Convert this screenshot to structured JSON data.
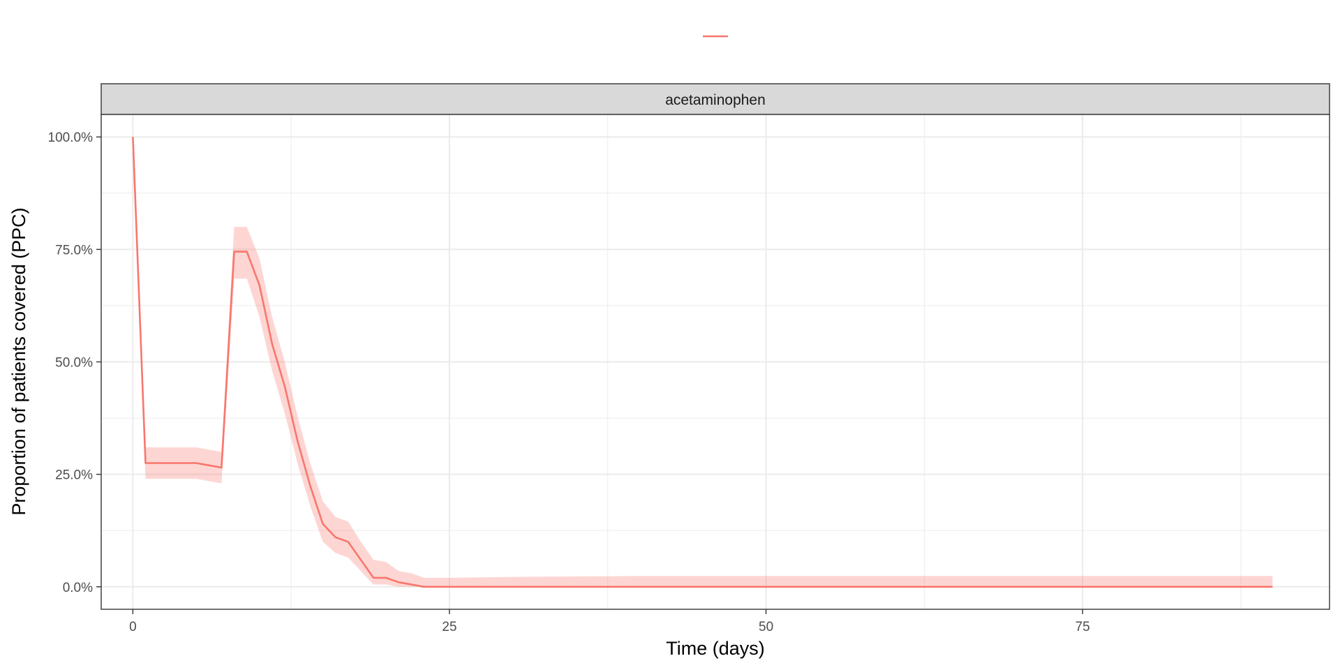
{
  "chart_data": {
    "type": "line",
    "facet": "acetaminophen",
    "xlabel": "Time (days)",
    "ylabel": "Proportion of patients covered (PPC)",
    "xlim": [
      -2.5,
      94.5
    ],
    "ylim": [
      -0.05,
      1.05
    ],
    "x_ticks": [
      0,
      25,
      50,
      75
    ],
    "x_tick_labels": [
      "0",
      "25",
      "50",
      "75"
    ],
    "y_ticks": [
      0,
      0.25,
      0.5,
      0.75,
      1.0
    ],
    "y_tick_labels": [
      "0.0%",
      "25.0%",
      "50.0%",
      "75.0%",
      "100.0%"
    ],
    "grid": true,
    "legend": {
      "position": "top",
      "entries": [
        ""
      ]
    },
    "series": [
      {
        "color": "#F8766D",
        "ribbon_color": "#F8766D",
        "x": [
          0,
          1,
          2,
          3,
          4,
          5,
          6,
          7,
          8,
          9,
          10,
          11,
          12,
          13,
          14,
          15,
          16,
          17,
          18,
          19,
          20,
          21,
          22,
          23,
          24,
          25,
          30,
          40,
          50,
          60,
          70,
          80,
          90
        ],
        "y": [
          1.0,
          0.275,
          0.275,
          0.275,
          0.275,
          0.275,
          0.27,
          0.265,
          0.745,
          0.745,
          0.67,
          0.54,
          0.445,
          0.325,
          0.225,
          0.14,
          0.11,
          0.1,
          0.06,
          0.02,
          0.02,
          0.01,
          0.005,
          0.0,
          0.0,
          0.0,
          0.0,
          0.0,
          0.0,
          0.0,
          0.0,
          0.0,
          0.0
        ],
        "lower": [
          1.0,
          0.24,
          0.24,
          0.24,
          0.24,
          0.24,
          0.235,
          0.23,
          0.685,
          0.685,
          0.6,
          0.48,
          0.385,
          0.275,
          0.18,
          0.1,
          0.075,
          0.065,
          0.035,
          0.005,
          0.005,
          0.0,
          0.0,
          0.0,
          0.0,
          0.0,
          0.0,
          0.0,
          0.0,
          0.0,
          0.0,
          0.0,
          0.0
        ],
        "upper": [
          1.0,
          0.31,
          0.31,
          0.31,
          0.31,
          0.31,
          0.305,
          0.3,
          0.8,
          0.8,
          0.73,
          0.6,
          0.5,
          0.38,
          0.275,
          0.19,
          0.155,
          0.145,
          0.1,
          0.06,
          0.055,
          0.035,
          0.03,
          0.02,
          0.02,
          0.02,
          0.022,
          0.024,
          0.024,
          0.024,
          0.024,
          0.024,
          0.024
        ]
      }
    ]
  }
}
